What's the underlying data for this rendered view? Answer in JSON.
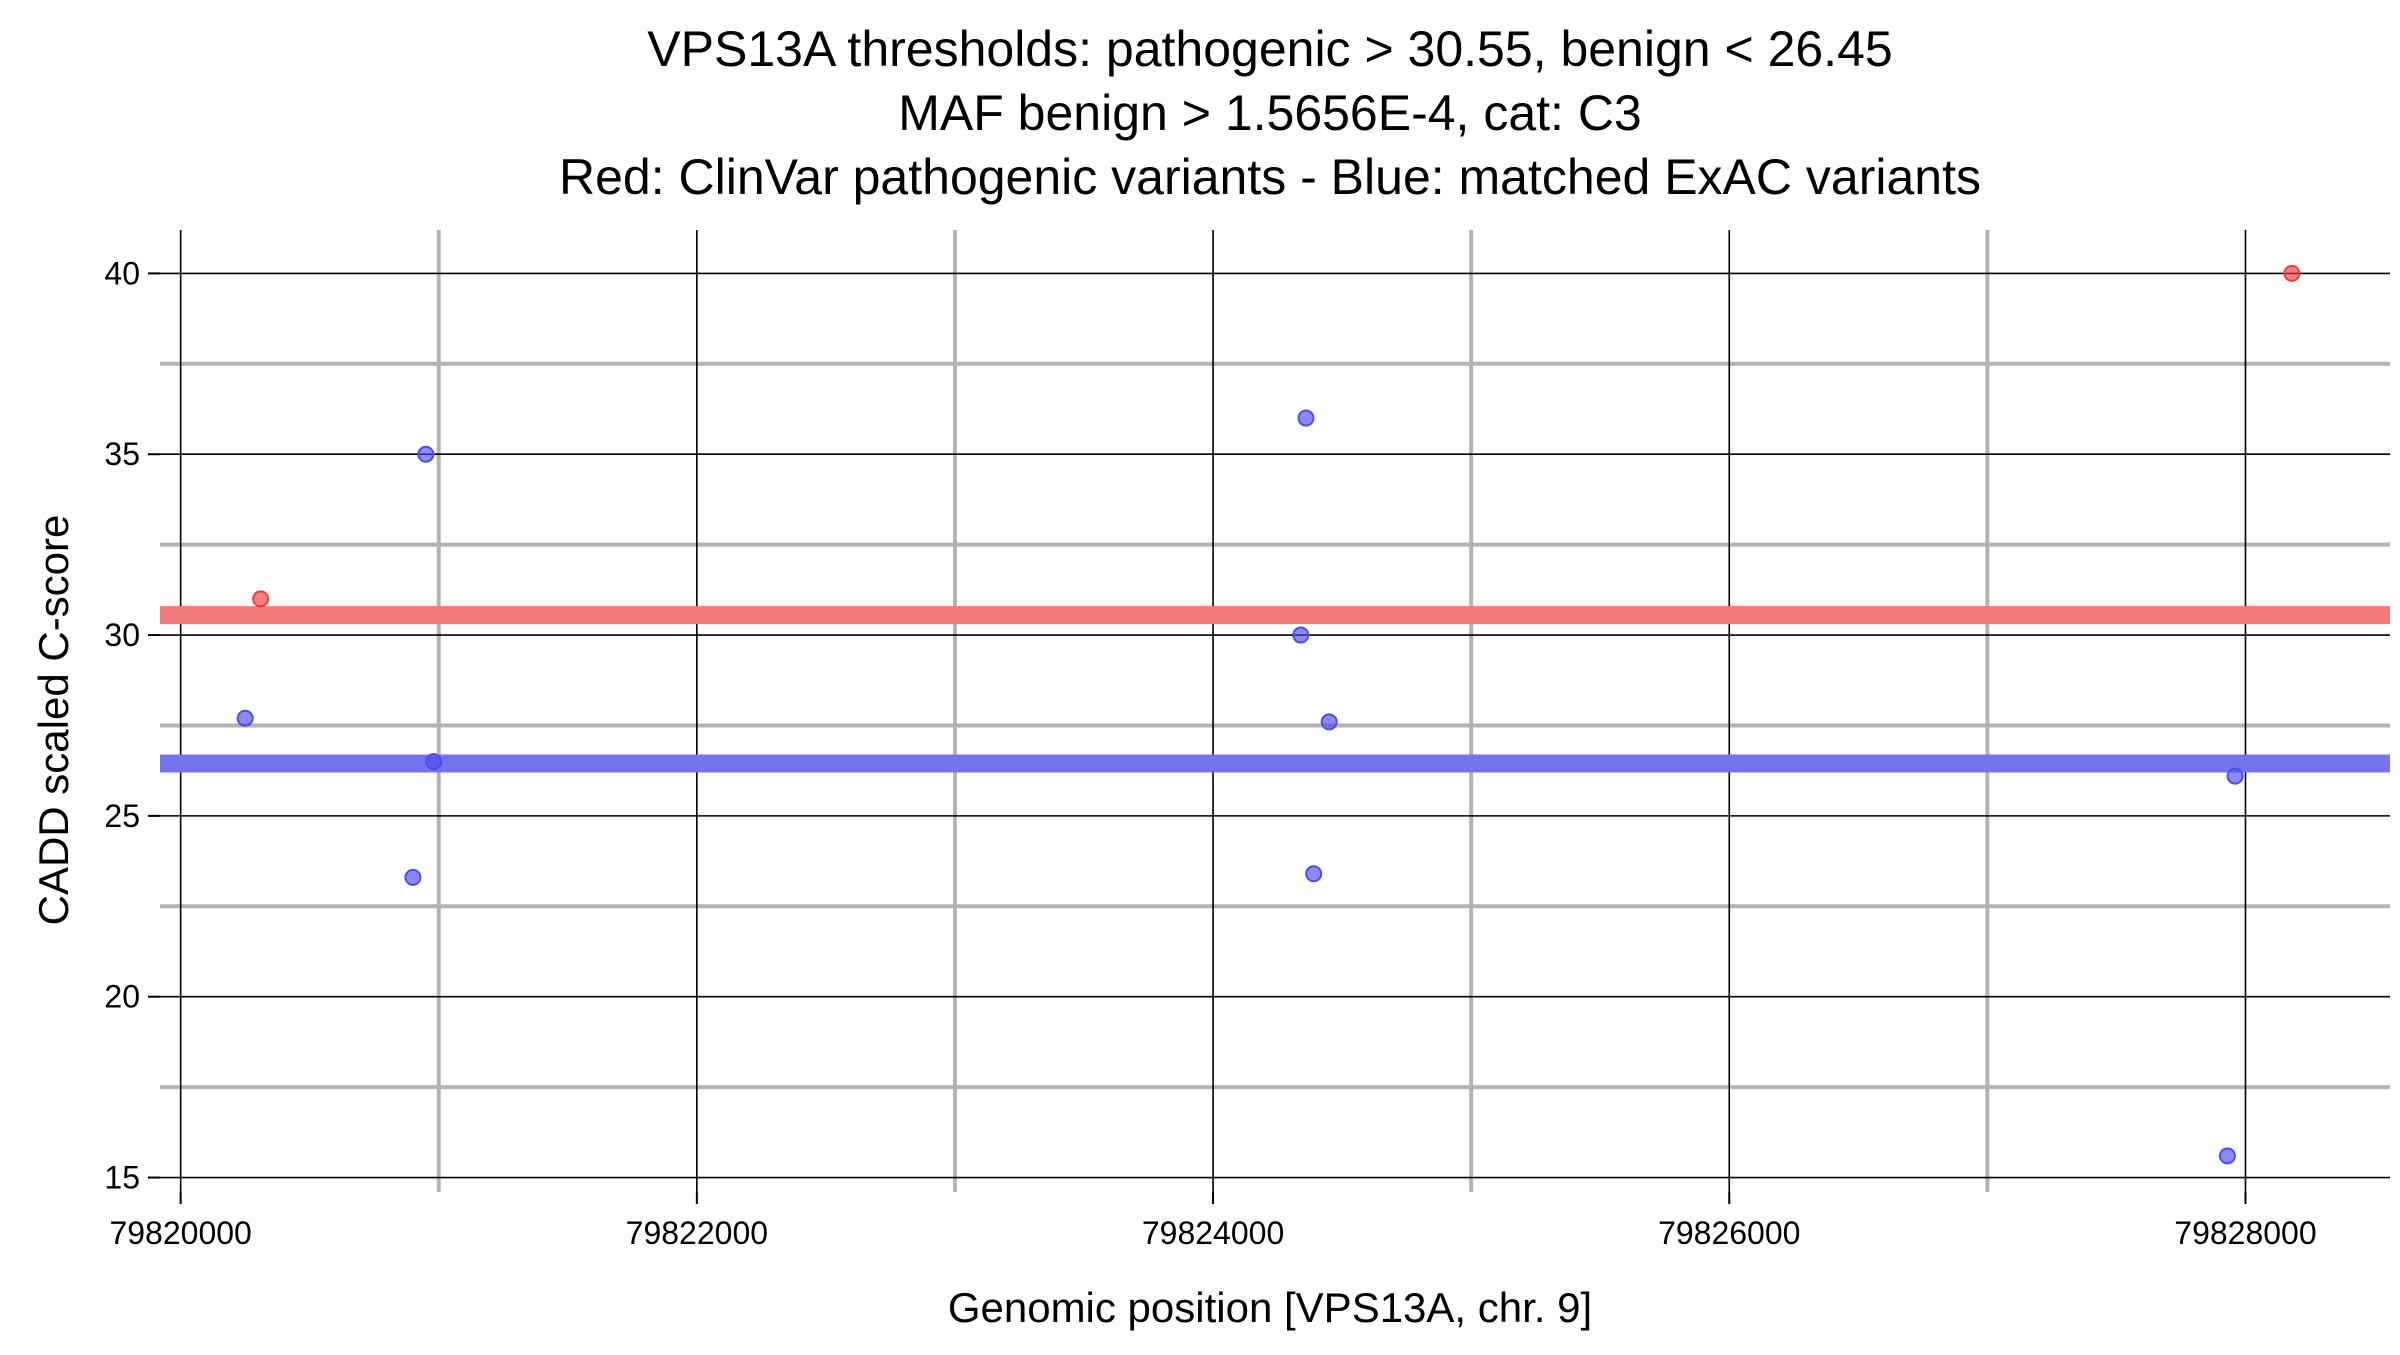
{
  "chart_data": {
    "type": "scatter",
    "title_lines": [
      "VPS13A thresholds: pathogenic > 30.55, benign < 26.45",
      "MAF benign > 1.5656E-4, cat: C3",
      "Red: ClinVar pathogenic variants - Blue: matched ExAC variants"
    ],
    "xlabel": "Genomic position [VPS13A, chr. 9]",
    "ylabel": "CADD scaled C-score",
    "xlim": [
      79819920,
      79828560
    ],
    "ylim": [
      14.6,
      41.2
    ],
    "x_major_ticks": [
      79820000,
      79822000,
      79824000,
      79826000,
      79828000
    ],
    "x_tick_labels": [
      "79820000",
      "79822000",
      "79824000",
      "79826000",
      "79828000"
    ],
    "x_minor_gridlines": [
      79821000,
      79823000,
      79825000,
      79827000
    ],
    "y_major_ticks": [
      15,
      20,
      25,
      30,
      35,
      40
    ],
    "y_tick_labels": [
      "15",
      "20",
      "25",
      "30",
      "35",
      "40"
    ],
    "y_minor_gridlines": [
      17.5,
      22.5,
      27.5,
      32.5,
      37.5
    ],
    "grid": true,
    "thresholds": [
      {
        "value": 30.55,
        "color": "#f27a7a"
      },
      {
        "value": 26.45,
        "color": "#7474f0"
      }
    ],
    "series": [
      {
        "color": "#f03c3c",
        "points": [
          {
            "x": 79820310,
            "y": 31.0
          },
          {
            "x": 79828180,
            "y": 40.0
          }
        ]
      },
      {
        "color": "#4c4cf0",
        "points": [
          {
            "x": 79820250,
            "y": 27.7
          },
          {
            "x": 79820950,
            "y": 35.0
          },
          {
            "x": 79820980,
            "y": 26.5
          },
          {
            "x": 79820900,
            "y": 23.3
          },
          {
            "x": 79824360,
            "y": 36.0
          },
          {
            "x": 79824340,
            "y": 30.0
          },
          {
            "x": 79824450,
            "y": 27.6
          },
          {
            "x": 79824390,
            "y": 23.4
          },
          {
            "x": 79827960,
            "y": 26.1
          },
          {
            "x": 79827930,
            "y": 15.6
          }
        ]
      }
    ]
  }
}
